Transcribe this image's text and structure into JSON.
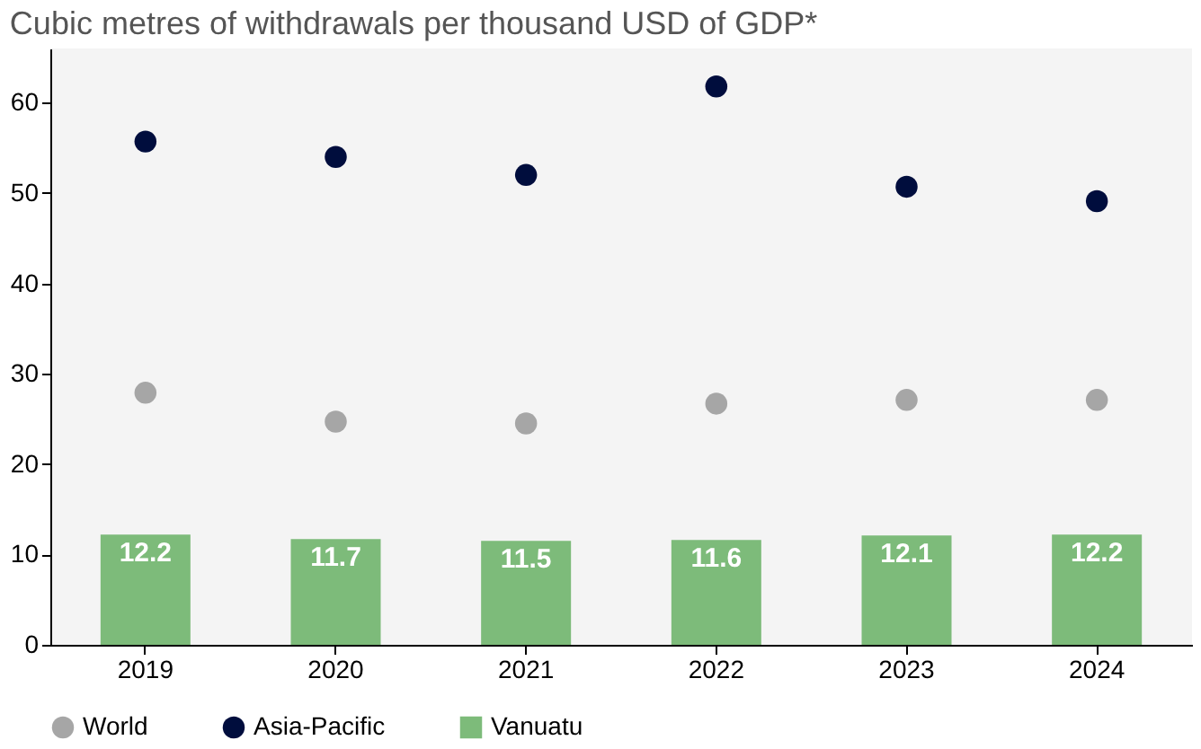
{
  "chart_data": {
    "type": "bar",
    "title": "Cubic metres of withdrawals per thousand USD of GDP*",
    "categories": [
      "2019",
      "2020",
      "2021",
      "2022",
      "2023",
      "2024"
    ],
    "series": [
      {
        "name": "World",
        "type": "scatter",
        "color": "#a6a6a6",
        "values": [
          27.9,
          24.7,
          24.5,
          26.7,
          27.1,
          27.1
        ]
      },
      {
        "name": "Asia-Pacific",
        "type": "scatter",
        "color": "#000d3d",
        "values": [
          55.7,
          54.0,
          52.0,
          61.8,
          50.7,
          49.1
        ]
      },
      {
        "name": "Vanuatu",
        "color": "#7dbb7a",
        "values": [
          12.2,
          11.7,
          11.5,
          11.6,
          12.1,
          12.2
        ],
        "value_labels": [
          "12.2",
          "11.7",
          "11.5",
          "11.6",
          "12.1",
          "12.2"
        ]
      }
    ],
    "ylim": [
      0,
      66
    ],
    "yticks": [
      0,
      10,
      20,
      30,
      40,
      50,
      60
    ],
    "grid": false,
    "legend": "bottom",
    "marker": "circle"
  }
}
